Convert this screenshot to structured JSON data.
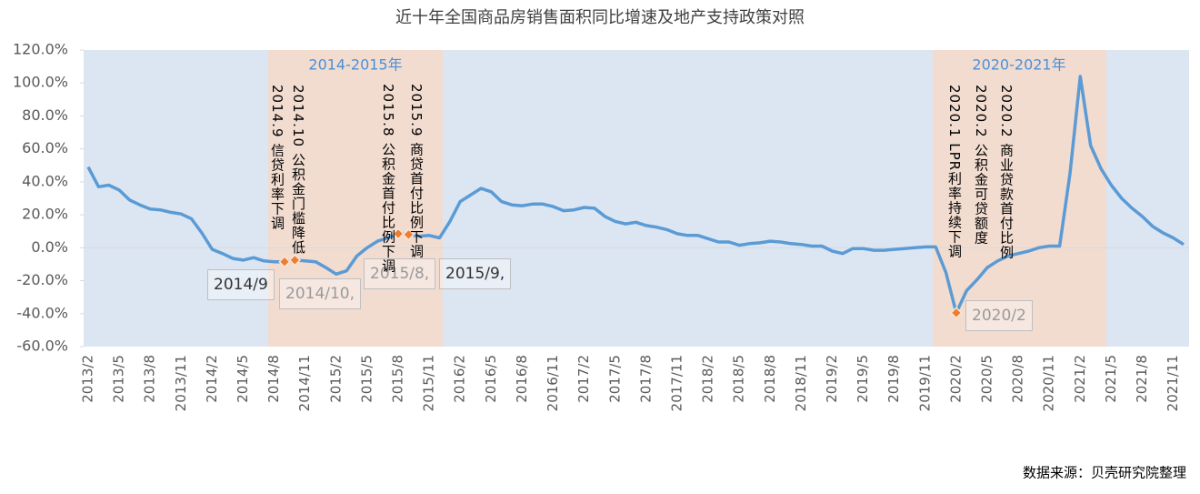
{
  "chart_data": {
    "type": "line",
    "title": "近十年全国商品房销售面积同比增速及地产支持政策对照",
    "source": "数据来源：贝壳研究院整理",
    "categories": [
      "2013/2",
      null,
      null,
      "2013/5",
      null,
      null,
      "2013/8",
      null,
      null,
      "2013/11",
      null,
      null,
      "2014/2",
      null,
      null,
      "2014/5",
      null,
      null,
      "2014/8",
      null,
      null,
      "2014/11",
      null,
      null,
      "2015/2",
      null,
      null,
      "2015/5",
      null,
      null,
      "2015/8",
      null,
      null,
      "2015/11",
      null,
      null,
      "2016/2",
      null,
      null,
      "2016/5",
      null,
      null,
      "2016/8",
      null,
      null,
      "2016/11",
      null,
      null,
      "2017/2",
      null,
      null,
      "2017/5",
      null,
      null,
      "2017/8",
      null,
      null,
      "2017/11",
      null,
      null,
      "2018/2",
      null,
      null,
      "2018/5",
      null,
      null,
      "2018/8",
      null,
      null,
      "2018/11",
      null,
      null,
      "2019/2",
      null,
      null,
      "2019/5",
      null,
      null,
      "2019/8",
      null,
      null,
      "2019/11",
      null,
      null,
      "2020/2",
      null,
      null,
      "2020/5",
      null,
      null,
      "2020/8",
      null,
      null,
      "2020/11",
      null,
      null,
      "2021/2",
      null,
      null,
      "2021/5",
      null,
      null,
      "2021/8",
      null,
      null,
      "2021/11",
      null
    ],
    "values": [
      49,
      37,
      38,
      35,
      29,
      26,
      23.5,
      23,
      21.5,
      20.5,
      17.5,
      9,
      -1,
      -3.5,
      -6.5,
      -7.5,
      -6,
      -8,
      -8.5,
      -8.5,
      -7.5,
      -8,
      -8.5,
      -12,
      -16,
      -14,
      -5,
      0,
      4,
      6,
      8.5,
      8,
      7,
      7.5,
      6,
      16,
      28,
      32,
      36,
      34,
      28,
      26,
      25.5,
      26.5,
      26.5,
      25,
      22.5,
      23,
      24.5,
      24,
      19,
      16,
      14.5,
      15.5,
      13.5,
      12.5,
      11,
      8.5,
      7.5,
      7.5,
      5.5,
      3.5,
      3.5,
      1.5,
      2.5,
      3,
      4,
      3.5,
      2.5,
      2,
      1,
      1,
      -2,
      -3.5,
      -0.5,
      -0.5,
      -1.5,
      -1.5,
      -1,
      -0.5,
      0,
      0.5,
      0.5,
      -15,
      -39.5,
      -26,
      -19.5,
      -12,
      -8,
      -5,
      -3.5,
      -2,
      0,
      1,
      1,
      45,
      104,
      62,
      48,
      38,
      30,
      24,
      19,
      13,
      9,
      6,
      2
    ],
    "color": "#5b9bd5",
    "ylim": [
      -60,
      120
    ],
    "yticks": [
      {
        "value": -60,
        "label": "-60.0%"
      },
      {
        "value": -40,
        "label": "-40.0%"
      },
      {
        "value": -20,
        "label": "-20.0%"
      },
      {
        "value": 0,
        "label": "0.0%"
      },
      {
        "value": 20,
        "label": "20.0%"
      },
      {
        "value": 40,
        "label": "40.0%"
      },
      {
        "value": 60,
        "label": "60.0%"
      },
      {
        "value": 80,
        "label": "80.0%"
      },
      {
        "value": 100,
        "label": "100.0%"
      },
      {
        "value": 120,
        "label": "120.0%"
      }
    ],
    "region_labels": [
      "2014-2015年",
      "2020-2021年"
    ],
    "callouts": [
      "2014/9",
      "2014/10,",
      "2015/8,",
      "2015/9,",
      "2020/2"
    ],
    "annotations": [
      "2014.9 信贷利率下调",
      "2014.10 公积金门槛降低",
      "2015.8 公积金首付比例下调",
      "2015.9 商贷首付比例下调",
      "2020.1 LPR利率持续下调",
      "2020.2 公积金可贷额度",
      "2020.2 商业贷款首付比例"
    ]
  }
}
